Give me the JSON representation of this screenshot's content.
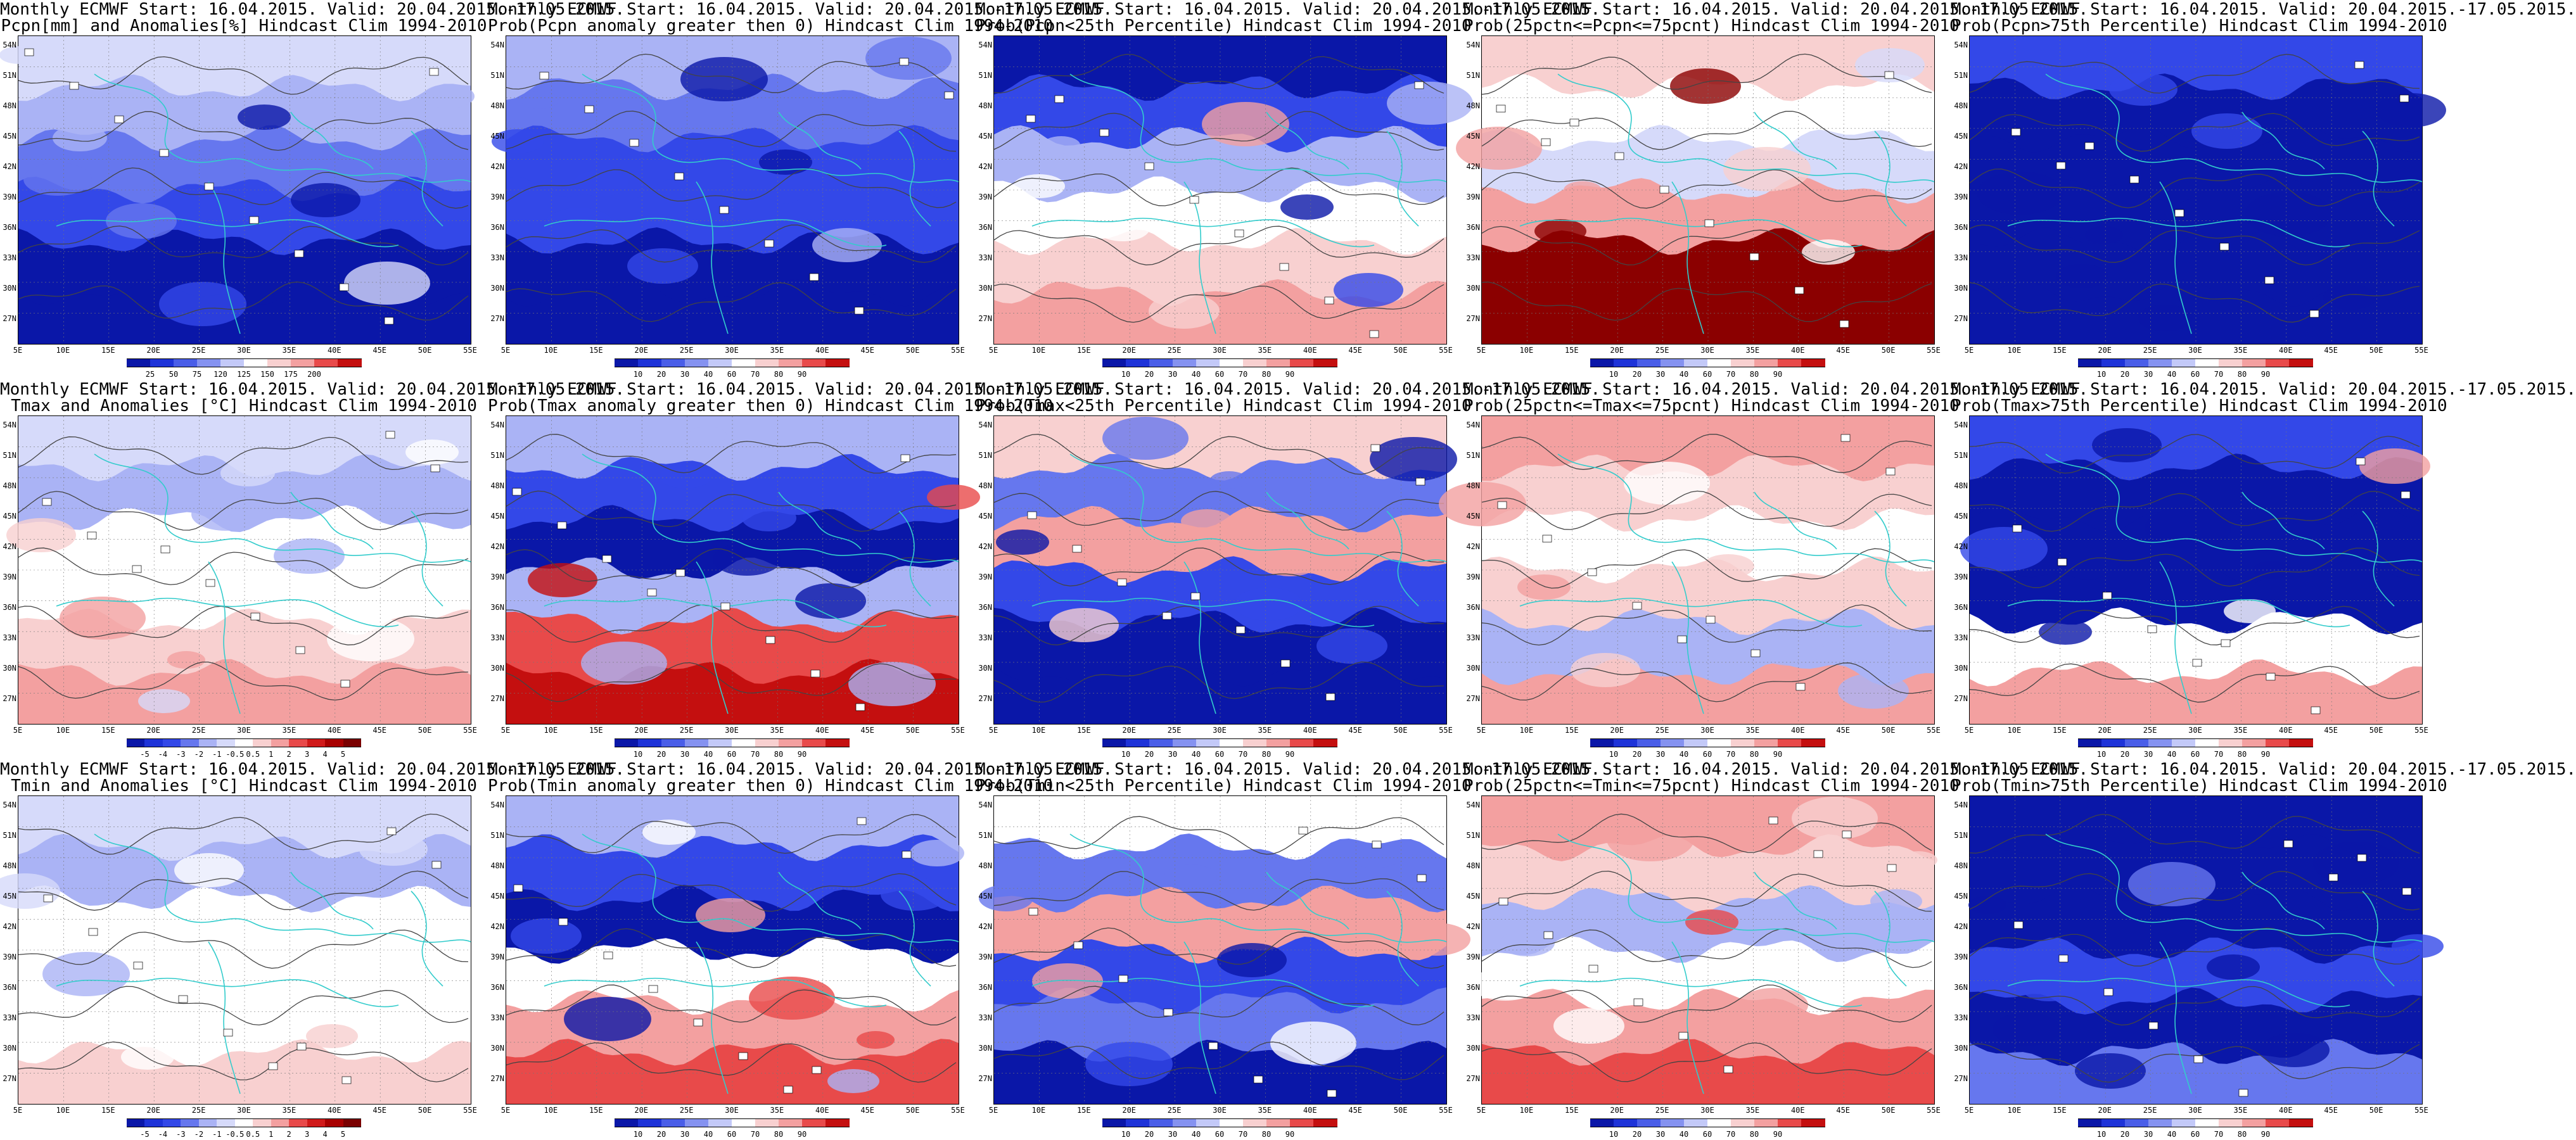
{
  "colors": {
    "blue_deep": "#0a17a8",
    "blue": "#3348e8",
    "blue_mid": "#6677ee",
    "blue_light": "#aab3f5",
    "blue_pale": "#d6dafa",
    "white": "#ffffff",
    "red_pale": "#f8d0d0",
    "red_light": "#f3a0a0",
    "red": "#e84a4a",
    "red_deep": "#c40f0f",
    "red_dark": "#8b0000",
    "coast": "#33cccc",
    "contour": "#444444"
  },
  "axes": {
    "lat_labels": [
      "54N",
      "51N",
      "48N",
      "45N",
      "42N",
      "39N",
      "36N",
      "33N",
      "30N",
      "27N"
    ],
    "lon_labels": [
      "5E",
      "10E",
      "15E",
      "20E",
      "25E",
      "30E",
      "35E",
      "40E",
      "45E",
      "50E",
      "55E"
    ]
  },
  "panels": [
    {
      "title1": "Monthly ECMWF Start: 16.04.2015. Valid: 20.04.2015.-17.05.2015.",
      "title2": "Pcpn[mm] and Anomalies[%] Hindcast Clim 1994-2010",
      "colorbar_labels": [
        "25",
        "50",
        "75",
        "120",
        "125",
        "150",
        "175",
        "200"
      ],
      "bands": [
        "blue_pale",
        "blue_light",
        "blue_mid",
        "blue",
        "blue_deep",
        "blue_deep"
      ]
    },
    {
      "title1": "Monthly ECMWF Start: 16.04.2015. Valid: 20.04.2015.-17.05.2015.",
      "title2": "Prob(Pcpn anomaly greater then 0) Hindcast Clim 1994-2010",
      "colorbar_labels": [
        "10",
        "20",
        "30",
        "40",
        "60",
        "70",
        "80",
        "90"
      ],
      "bands": [
        "blue_light",
        "blue_mid",
        "blue",
        "blue",
        "blue_deep",
        "blue_deep"
      ]
    },
    {
      "title1": "Monthly ECMWF Start: 16.04.2015. Valid: 20.04.2015.-17.05.2015.",
      "title2": "Prob(Pcpn<25th Percentile) Hindcast Clim 1994-2010",
      "colorbar_labels": [
        "10",
        "20",
        "30",
        "40",
        "60",
        "70",
        "80",
        "90"
      ],
      "bands": [
        "blue_deep",
        "blue",
        "blue_light",
        "white",
        "red_pale",
        "red_light"
      ]
    },
    {
      "title1": "Monthly ECMWF Start: 16.04.2015. Valid: 20.04.2015.-17.05.2015.",
      "title2": "Prob(25pctn<=Pcpn<=75pcnt) Hindcast Clim 1994-2010",
      "colorbar_labels": [
        "10",
        "20",
        "30",
        "40",
        "60",
        "70",
        "80",
        "90"
      ],
      "bands": [
        "red_pale",
        "white",
        "blue_pale",
        "red_light",
        "red_dark",
        "red_dark"
      ]
    },
    {
      "title1": "Monthly ECMWF Start: 16.04.2015. Valid: 20.04.2015.-17.05.2015.",
      "title2": "Prob(Pcpn>75th Percentile) Hindcast Clim 1994-2010",
      "colorbar_labels": [
        "10",
        "20",
        "30",
        "40",
        "60",
        "70",
        "80",
        "90"
      ],
      "bands": [
        "blue",
        "blue_deep",
        "blue_deep",
        "blue_deep",
        "blue_deep",
        "blue_deep"
      ]
    },
    {
      "title1": "Monthly ECMWF Start: 16.04.2015. Valid: 20.04.2015.-17.05.2015.",
      "title2": "Tmax and Anomalies [°C] Hindcast Clim 1994-2010",
      "colorbar_labels": [
        "-5",
        "-4",
        "-3",
        "-2",
        "-1",
        "-0.5",
        "0.5",
        "1",
        "2",
        "3",
        "4",
        "5"
      ],
      "bands": [
        "blue_pale",
        "blue_light",
        "white",
        "white",
        "red_pale",
        "red_light"
      ]
    },
    {
      "title1": "Monthly ECMWF Start: 16.04.2015. Valid: 20.04.2015.-17.05.2015.",
      "title2": "Prob(Tmax anomaly greater then 0) Hindcast Clim 1994-2010",
      "colorbar_labels": [
        "10",
        "20",
        "30",
        "40",
        "60",
        "70",
        "80",
        "90"
      ],
      "bands": [
        "blue_light",
        "blue",
        "blue_deep",
        "blue_light",
        "red",
        "red_deep"
      ]
    },
    {
      "title1": "Monthly ECMWF Start: 16.04.2015. Valid: 20.04.2015.-17.05.2015.",
      "title2": "Prob(Tmax<25th Percentile) Hindcast Clim 1994-2010",
      "colorbar_labels": [
        "10",
        "20",
        "30",
        "40",
        "60",
        "70",
        "80",
        "90"
      ],
      "bands": [
        "red_pale",
        "blue_mid",
        "red_light",
        "blue",
        "blue_deep",
        "blue_deep"
      ]
    },
    {
      "title1": "Monthly ECMWF Start: 16.04.2015. Valid: 20.04.2015.-17.05.2015.",
      "title2": "Prob(25pctn<=Tmax<=75pcnt) Hindcast Clim 1994-2010",
      "colorbar_labels": [
        "10",
        "20",
        "30",
        "40",
        "60",
        "70",
        "80",
        "90"
      ],
      "bands": [
        "red_light",
        "red_pale",
        "white",
        "red_pale",
        "blue_light",
        "red_light"
      ]
    },
    {
      "title1": "Monthly ECMWF Start: 16.04.2015. Valid: 20.04.2015.-17.05.2015.",
      "title2": "Prob(Tmax>75th Percentile) Hindcast Clim 1994-2010",
      "colorbar_labels": [
        "10",
        "20",
        "30",
        "40",
        "60",
        "70",
        "80",
        "90"
      ],
      "bands": [
        "blue",
        "blue_deep",
        "blue_deep",
        "blue_deep",
        "white",
        "red_light"
      ]
    },
    {
      "title1": "Monthly ECMWF Start: 16.04.2015. Valid: 20.04.2015.-17.05.2015.",
      "title2": "Tmin and Anomalies [°C] Hindcast Clim 1994-2010",
      "colorbar_labels": [
        "-5",
        "-4",
        "-3",
        "-2",
        "-1",
        "-0.5",
        "0.5",
        "1",
        "2",
        "3",
        "4",
        "5"
      ],
      "bands": [
        "blue_pale",
        "blue_light",
        "white",
        "white",
        "white",
        "red_pale"
      ]
    },
    {
      "title1": "Monthly ECMWF Start: 16.04.2015. Valid: 20.04.2015.-17.05.2015.",
      "title2": "Prob(Tmin anomaly greater then 0) Hindcast Clim 1994-2010",
      "colorbar_labels": [
        "10",
        "20",
        "30",
        "40",
        "60",
        "70",
        "80",
        "90"
      ],
      "bands": [
        "blue_light",
        "blue",
        "blue_deep",
        "white",
        "red_light",
        "red"
      ]
    },
    {
      "title1": "Monthly ECMWF Start: 16.04.2015. Valid: 20.04.2015.-17.05.2015.",
      "title2": "Prob(Tmin<25th Percentile) Hindcast Clim 1994-2010",
      "colorbar_labels": [
        "10",
        "20",
        "30",
        "40",
        "60",
        "70",
        "80",
        "90"
      ],
      "bands": [
        "white",
        "blue_mid",
        "red_light",
        "blue",
        "blue_mid",
        "blue_deep"
      ]
    },
    {
      "title1": "Monthly ECMWF Start: 16.04.2015. Valid: 20.04.2015.-17.05.2015.",
      "title2": "Prob(25pctn<=Tmin<=75pcnt) Hindcast Clim 1994-2010",
      "colorbar_labels": [
        "10",
        "20",
        "30",
        "40",
        "60",
        "70",
        "80",
        "90"
      ],
      "bands": [
        "red_light",
        "red_pale",
        "blue_light",
        "white",
        "red_light",
        "red"
      ]
    },
    {
      "title1": "Monthly ECMWF Start: 16.04.2015. Valid: 20.04.2015.-17.05.2015.",
      "title2": "Prob(Tmin>75th Percentile) Hindcast Clim 1994-2010",
      "colorbar_labels": [
        "10",
        "20",
        "30",
        "40",
        "60",
        "70",
        "80",
        "90"
      ],
      "bands": [
        "blue_deep",
        "blue_deep",
        "blue_deep",
        "blue",
        "blue_deep",
        "blue_mid"
      ]
    }
  ]
}
